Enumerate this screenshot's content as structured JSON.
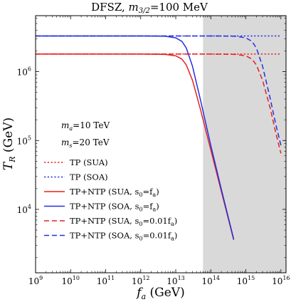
{
  "chart_data": {
    "type": "line",
    "title": "DFSZ, m₃/₂=100 MeV",
    "title_parts": {
      "prefix": "DFSZ, ",
      "var": "m",
      "sub": "3/2",
      "suffix": "=100 MeV"
    },
    "xlabel": "fₐ (GeV)",
    "xlabel_parts": {
      "var": "f",
      "sub": "a",
      "suffix": " (GeV)"
    },
    "ylabel": "T_R (GeV)",
    "ylabel_parts": {
      "var": "T",
      "sub": "R",
      "suffix": " (GeV)"
    },
    "x_scale": "log",
    "y_scale": "log",
    "xlim": [
      1000000000.0,
      1.4e+16
    ],
    "ylim": [
      1200.0,
      6500000.0
    ],
    "x_ticks": [
      {
        "value": 1000000000.0,
        "base": "10",
        "exp": "9"
      },
      {
        "value": 10000000000.0,
        "base": "10",
        "exp": "10"
      },
      {
        "value": 100000000000.0,
        "base": "10",
        "exp": "11"
      },
      {
        "value": 1000000000000.0,
        "base": "10",
        "exp": "12"
      },
      {
        "value": 10000000000000.0,
        "base": "10",
        "exp": "13"
      },
      {
        "value": 100000000000000.0,
        "base": "10",
        "exp": "14"
      },
      {
        "value": 1000000000000000.0,
        "base": "10",
        "exp": "15"
      },
      {
        "value": 1e+16,
        "base": "10",
        "exp": "16"
      }
    ],
    "y_ticks": [
      {
        "value": 10000.0,
        "base": "10",
        "exp": "4"
      },
      {
        "value": 100000.0,
        "base": "10",
        "exp": "5"
      },
      {
        "value": 1000000.0,
        "base": "10",
        "exp": "6"
      }
    ],
    "shaded_region": {
      "x": [
        60000000000000.0,
        1.4e+16
      ],
      "color": "#d9d9d9"
    },
    "annotations": [
      {
        "var": "m",
        "sub": "a",
        "suffix": "=10 TeV"
      },
      {
        "var": "m",
        "sub": "s",
        "suffix": "=20 TeV"
      }
    ],
    "legend_position": "lower-left",
    "series": [
      {
        "name": "TP (SUA)",
        "color": "#e8201f",
        "dash": "dotted",
        "x": [
          1000000000.0,
          1e+16
        ],
        "y": [
          1800000.0,
          1800000.0
        ]
      },
      {
        "name": "TP (SOA)",
        "color": "#2430e0",
        "dash": "dotted",
        "x": [
          1000000000.0,
          1e+16
        ],
        "y": [
          3300000.0,
          3300000.0
        ]
      },
      {
        "name": "TP+NTP (SUA, s₀=fₐ)",
        "color": "#e8201f",
        "dash": "solid",
        "x": [
          1000000000.0,
          1000000000000.0,
          5000000000000.0,
          10000000000000.0,
          15000000000000.0,
          20000000000000.0,
          30000000000000.0,
          50000000000000.0,
          100000000000000.0,
          200000000000000.0,
          450000000000000.0
        ],
        "y": [
          1800000.0,
          1800000.0,
          1780000.0,
          1700000.0,
          1520000.0,
          1250000.0,
          750000.0,
          290000.0,
          73000.0,
          18200.0,
          3600.0
        ]
      },
      {
        "name": "TP+NTP (SOA, s₀=fₐ)",
        "color": "#2430e0",
        "dash": "solid",
        "x": [
          1000000000.0,
          1000000000000.0,
          5000000000000.0,
          10000000000000.0,
          15000000000000.0,
          20000000000000.0,
          30000000000000.0,
          50000000000000.0,
          100000000000000.0,
          200000000000000.0,
          450000000000000.0
        ],
        "y": [
          3300000.0,
          3300000.0,
          3270000.0,
          3100000.0,
          2750000.0,
          2200000.0,
          1200000.0,
          400000.0,
          85000.0,
          19500.0,
          3700.0
        ]
      },
      {
        "name": "TP+NTP (SUA, s₀=0.01fₐ)",
        "color": "#e8201f",
        "dash": "dashed",
        "x": [
          1000000000.0,
          100000000000000.0,
          500000000000000.0,
          1000000000000000.0,
          1500000000000000.0,
          2000000000000000.0,
          3000000000000000.0,
          5000000000000000.0,
          7000000000000000.0,
          1e+16
        ],
        "y": [
          1800000.0,
          1800000.0,
          1780000.0,
          1700000.0,
          1520000.0,
          1250000.0,
          750000.0,
          290000.0,
          135000.0,
          65000.0
        ]
      },
      {
        "name": "TP+NTP (SOA, s₀=0.01fₐ)",
        "color": "#2430e0",
        "dash": "dashed",
        "x": [
          1000000000.0,
          100000000000000.0,
          500000000000000.0,
          1000000000000000.0,
          1500000000000000.0,
          2000000000000000.0,
          3000000000000000.0,
          5000000000000000.0,
          7000000000000000.0,
          1e+16
        ],
        "y": [
          3300000.0,
          3300000.0,
          3270000.0,
          3100000.0,
          2750000.0,
          2200000.0,
          1200000.0,
          400000.0,
          180000.0,
          85000.0
        ]
      }
    ],
    "legend": [
      {
        "label_prefix": "TP (SUA)",
        "sub_var": "",
        "sub": "",
        "label_suffix": ""
      },
      {
        "label_prefix": "TP (SOA)",
        "sub_var": "",
        "sub": "",
        "label_suffix": ""
      },
      {
        "label_prefix": "TP+NTP (SUA, ",
        "sub_var": "s",
        "sub": "0",
        "label_suffix": "=f",
        "sub2": "a",
        "tail": ")"
      },
      {
        "label_prefix": "TP+NTP (SOA, ",
        "sub_var": "s",
        "sub": "0",
        "label_suffix": "=f",
        "sub2": "a",
        "tail": ")"
      },
      {
        "label_prefix": "TP+NTP (SUA, ",
        "sub_var": "s",
        "sub": "0",
        "label_suffix": "=0.01f",
        "sub2": "a",
        "tail": ")"
      },
      {
        "label_prefix": "TP+NTP (SOA, ",
        "sub_var": "s",
        "sub": "0",
        "label_suffix": "=0.01f",
        "sub2": "a",
        "tail": ")"
      }
    ]
  }
}
